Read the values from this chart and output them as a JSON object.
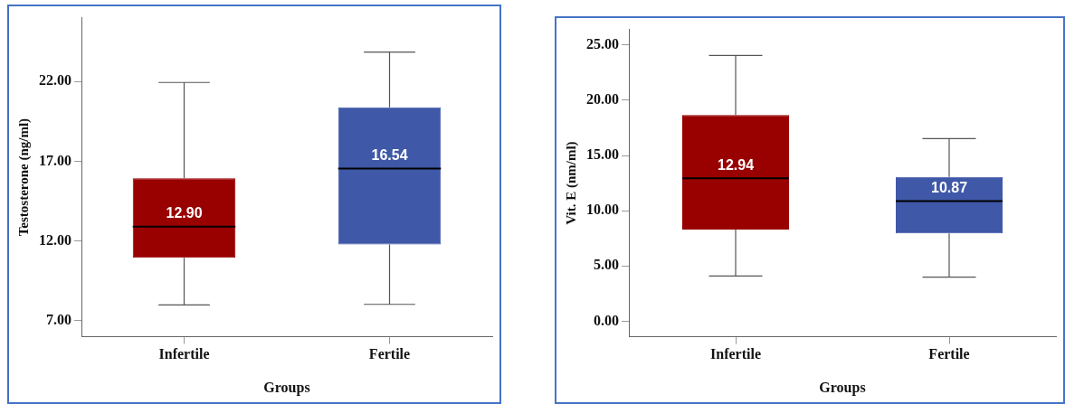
{
  "chart_data": [
    {
      "type": "box",
      "xlabel": "Groups",
      "ylabel": "Testosterone (ng/ml)",
      "categories": [
        "Infertile",
        "Fertile"
      ],
      "colors": [
        "#990000",
        "#3f59a8"
      ],
      "boxes": [
        {
          "low": 8.0,
          "q1": 10.95,
          "median": 12.9,
          "q3": 15.93,
          "high": 21.94
        },
        {
          "low": 8.03,
          "q1": 11.78,
          "median": 16.54,
          "q3": 20.38,
          "high": 23.84
        }
      ],
      "ylim": [
        6,
        26
      ],
      "yticks": [
        {
          "value": 7,
          "label": "7.00"
        },
        {
          "value": 12,
          "label": "12.00"
        },
        {
          "value": 17,
          "label": "17.00"
        },
        {
          "value": 22,
          "label": "22.00"
        }
      ],
      "annotations": [
        {
          "text": "12.90",
          "x": "Infertile",
          "y": 12.9
        },
        {
          "text": "16.54",
          "x": "Fertile",
          "y": 16.54
        }
      ]
    },
    {
      "type": "box",
      "xlabel": "Groups",
      "ylabel": "Vit. E (nm/ml)",
      "categories": [
        "Infertile",
        "Fertile"
      ],
      "colors": [
        "#990000",
        "#3f59a8"
      ],
      "boxes": [
        {
          "low": 4.1,
          "q1": 8.29,
          "median": 12.94,
          "q3": 18.67,
          "high": 24.05
        },
        {
          "low": 3.99,
          "q1": 7.95,
          "median": 10.87,
          "q3": 13.06,
          "high": 16.53
        }
      ],
      "ylim": [
        -1.4,
        26.4
      ],
      "yticks": [
        {
          "value": 0,
          "label": "0.00"
        },
        {
          "value": 5,
          "label": "5.00"
        },
        {
          "value": 10,
          "label": "10.00"
        },
        {
          "value": 15,
          "label": "15.00"
        },
        {
          "value": 20,
          "label": "20.00"
        },
        {
          "value": 25,
          "label": "25.00"
        }
      ],
      "annotations": [
        {
          "text": "12.94",
          "x": "Infertile",
          "y": 12.94
        },
        {
          "text": "10.87",
          "x": "Fertile",
          "y": 10.87
        }
      ]
    }
  ]
}
